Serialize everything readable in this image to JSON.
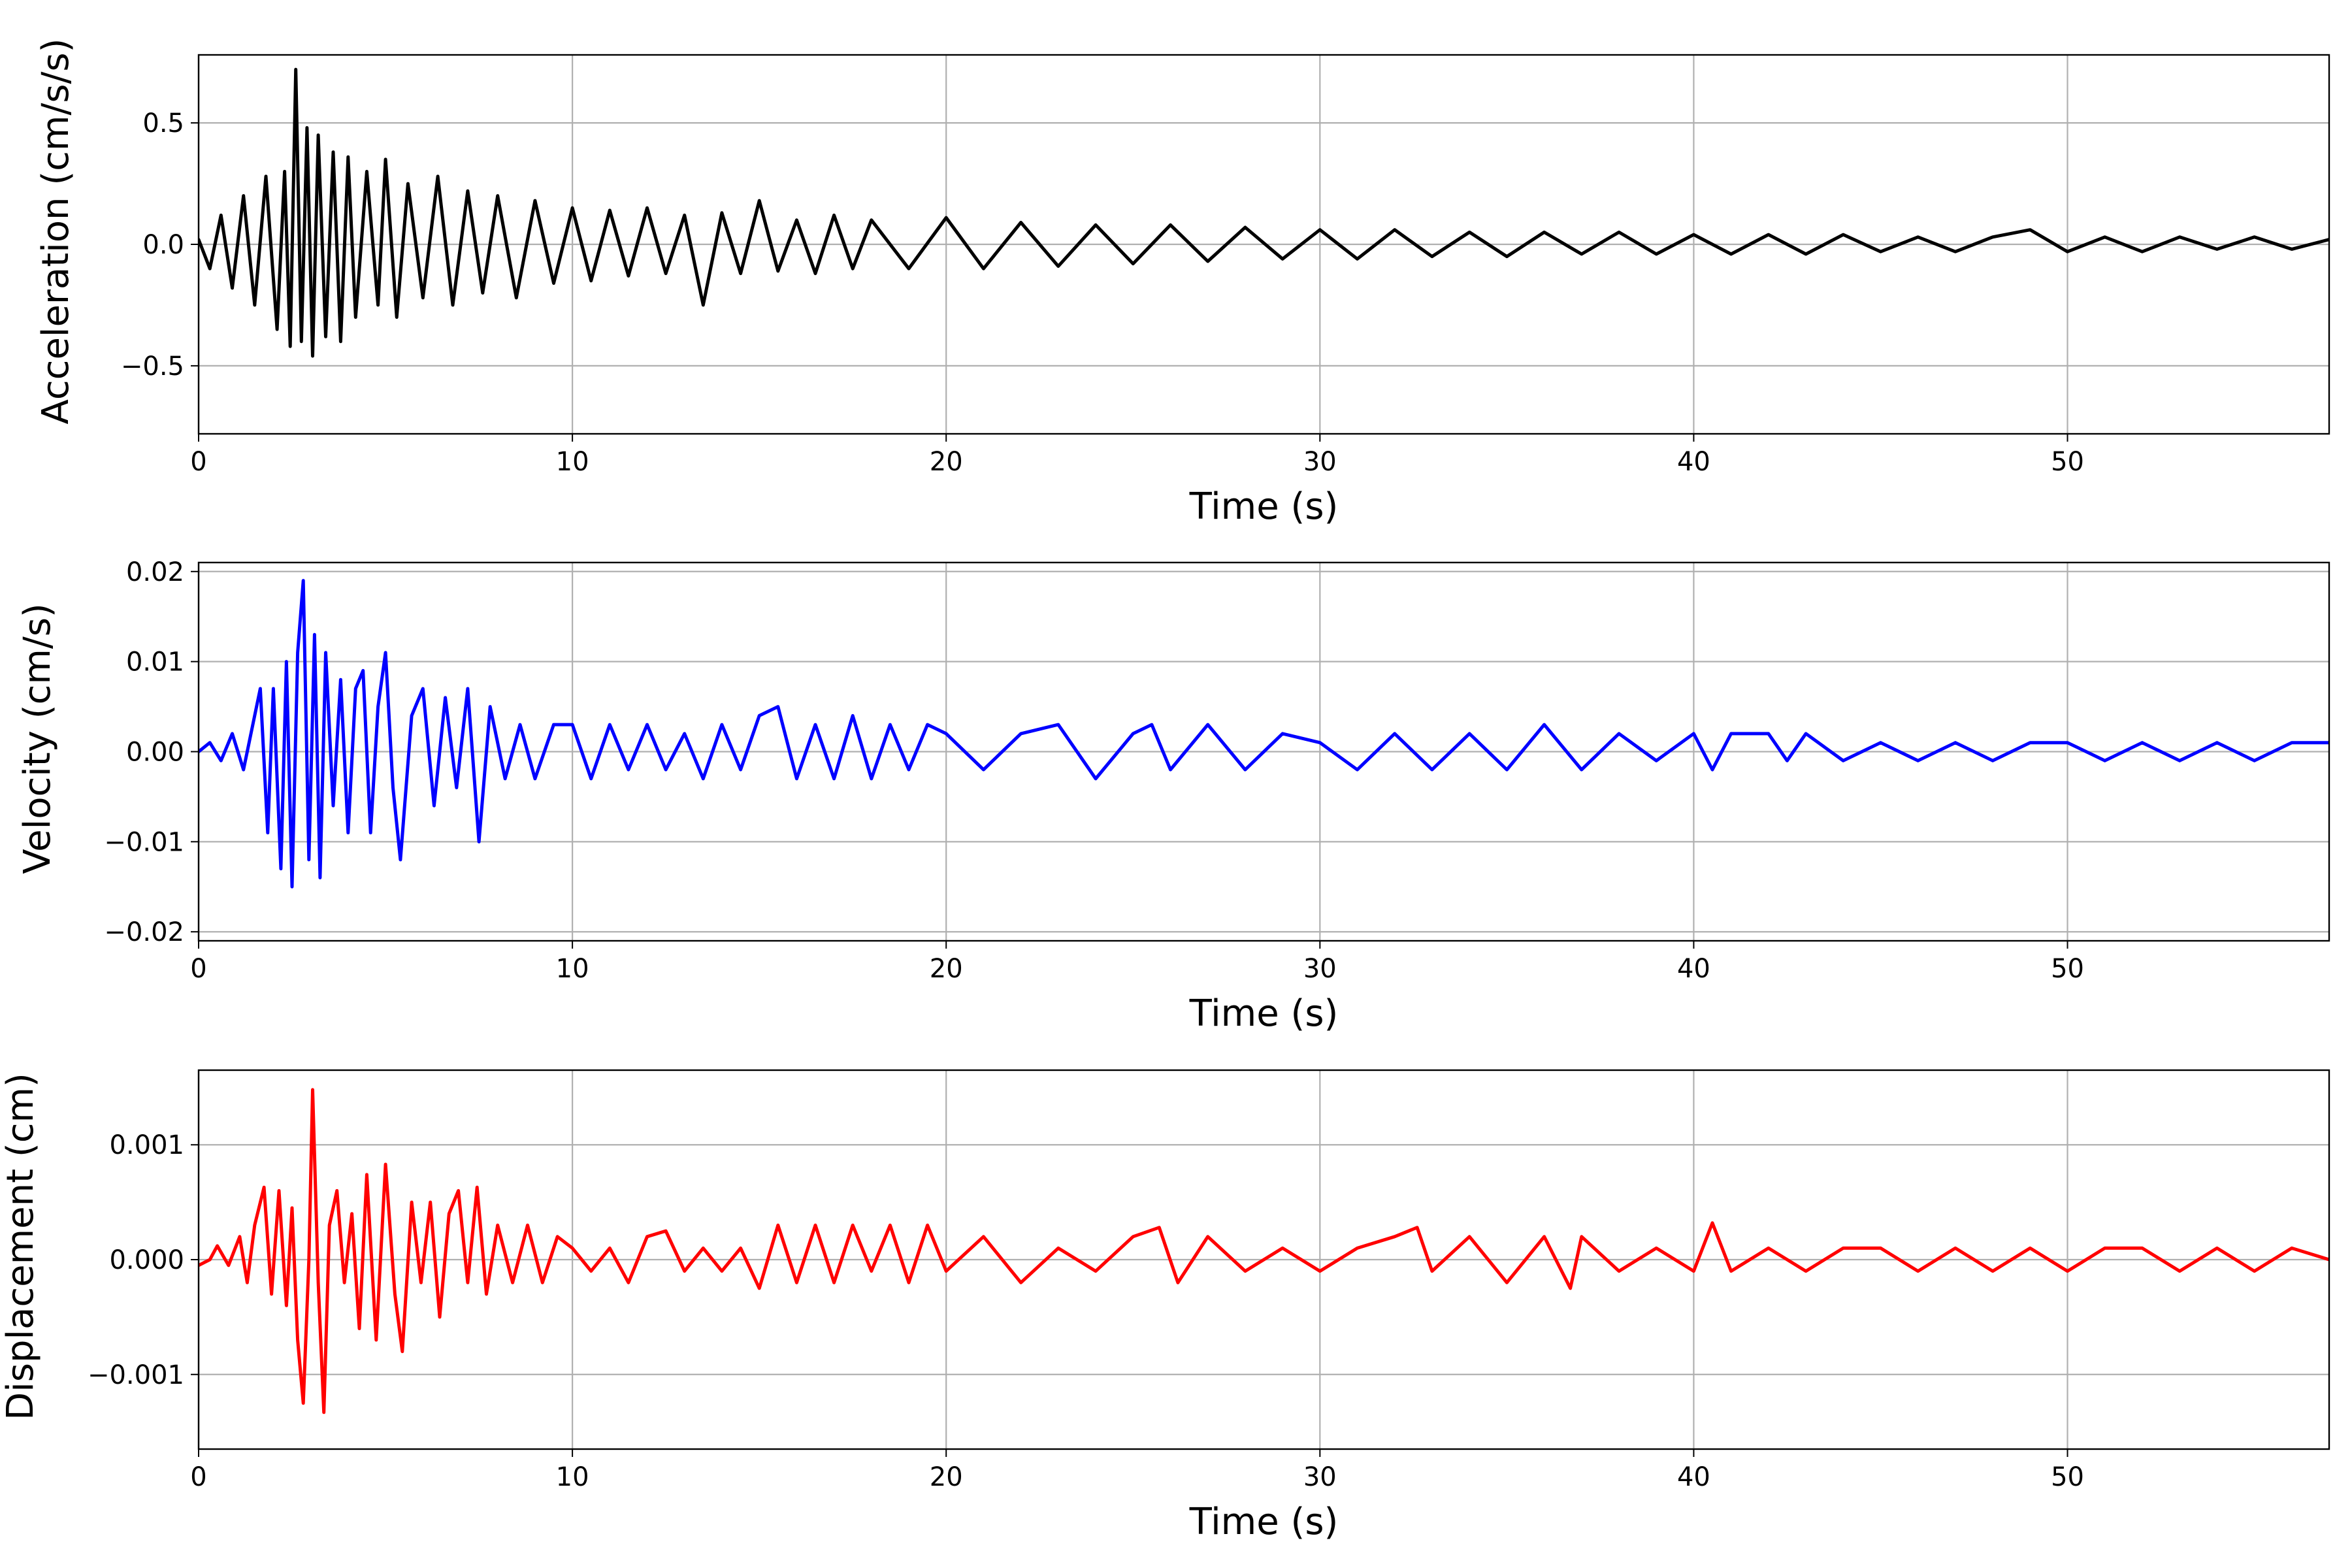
{
  "chart_data": [
    {
      "type": "line",
      "title": "",
      "xlabel": "Time (s)",
      "ylabel": "Acceleration (cm/s/s)",
      "xlim": [
        0,
        57
      ],
      "ylim": [
        -0.78,
        0.78
      ],
      "xticks": [
        0,
        10,
        20,
        30,
        40,
        50
      ],
      "xtick_labels": [
        "0",
        "10",
        "20",
        "30",
        "40",
        "50"
      ],
      "yticks": [
        -0.5,
        0.0,
        0.5
      ],
      "ytick_labels": [
        "−0.5",
        "0.0",
        "0.5"
      ],
      "grid": true,
      "legend": "none",
      "color": "#000000",
      "series": [
        {
          "x": [
            0,
            0.3,
            0.6,
            0.9,
            1.2,
            1.5,
            1.8,
            2.1,
            2.3,
            2.45,
            2.6,
            2.75,
            2.9,
            3.05,
            3.2,
            3.4,
            3.6,
            3.8,
            4.0,
            4.2,
            4.5,
            4.8,
            5.0,
            5.3,
            5.6,
            6.0,
            6.4,
            6.8,
            7.2,
            7.6,
            8.0,
            8.5,
            9.0,
            9.5,
            10.0,
            10.5,
            11.0,
            11.5,
            12.0,
            12.5,
            13.0,
            13.5,
            14.0,
            14.5,
            15.0,
            15.5,
            16.0,
            16.5,
            17.0,
            17.5,
            18.0,
            19.0,
            20.0,
            21.0,
            22.0,
            23.0,
            24.0,
            25.0,
            26.0,
            27.0,
            28.0,
            29.0,
            30.0,
            31.0,
            32.0,
            33.0,
            34.0,
            35.0,
            36.0,
            37.0,
            38.0,
            39.0,
            40.0,
            41.0,
            42.0,
            43.0,
            44.0,
            45.0,
            46.0,
            47.0,
            48.0,
            49.0,
            50.0,
            51.0,
            52.0,
            53.0,
            54.0,
            55.0,
            56.0,
            57.0
          ],
          "y": [
            0.02,
            -0.1,
            0.12,
            -0.18,
            0.2,
            -0.25,
            0.28,
            -0.35,
            0.3,
            -0.42,
            0.72,
            -0.4,
            0.48,
            -0.46,
            0.45,
            -0.38,
            0.38,
            -0.4,
            0.36,
            -0.3,
            0.3,
            -0.25,
            0.35,
            -0.3,
            0.25,
            -0.22,
            0.28,
            -0.25,
            0.22,
            -0.2,
            0.2,
            -0.22,
            0.18,
            -0.16,
            0.15,
            -0.15,
            0.14,
            -0.13,
            0.15,
            -0.12,
            0.12,
            -0.25,
            0.13,
            -0.12,
            0.18,
            -0.11,
            0.1,
            -0.12,
            0.12,
            -0.1,
            0.1,
            -0.1,
            0.11,
            -0.1,
            0.09,
            -0.09,
            0.08,
            -0.08,
            0.08,
            -0.07,
            0.07,
            -0.06,
            0.06,
            -0.06,
            0.06,
            -0.05,
            0.05,
            -0.05,
            0.05,
            -0.04,
            0.05,
            -0.04,
            0.04,
            -0.04,
            0.04,
            -0.04,
            0.04,
            -0.03,
            0.03,
            -0.03,
            0.03,
            0.06,
            -0.03,
            0.03,
            -0.03,
            0.03,
            -0.02,
            0.03,
            -0.02,
            0.02
          ]
        }
      ]
    },
    {
      "type": "line",
      "title": "",
      "xlabel": "Time (s)",
      "ylabel": "Velocity (cm/s)",
      "xlim": [
        0,
        57
      ],
      "ylim": [
        -0.021,
        0.021
      ],
      "xticks": [
        0,
        10,
        20,
        30,
        40,
        50
      ],
      "xtick_labels": [
        "0",
        "10",
        "20",
        "30",
        "40",
        "50"
      ],
      "yticks": [
        -0.02,
        -0.01,
        0.0,
        0.01,
        0.02
      ],
      "ytick_labels": [
        "−0.02",
        "−0.01",
        "0.00",
        "0.01",
        "0.02"
      ],
      "grid": true,
      "legend": "none",
      "color": "#0000ff",
      "series": [
        {
          "x": [
            0,
            0.3,
            0.6,
            0.9,
            1.2,
            1.5,
            1.65,
            1.85,
            2.0,
            2.2,
            2.35,
            2.5,
            2.65,
            2.8,
            2.95,
            3.1,
            3.25,
            3.4,
            3.6,
            3.8,
            4.0,
            4.2,
            4.4,
            4.6,
            4.8,
            5.0,
            5.2,
            5.4,
            5.7,
            6.0,
            6.3,
            6.6,
            6.9,
            7.2,
            7.5,
            7.8,
            8.2,
            8.6,
            9.0,
            9.5,
            10.0,
            10.5,
            11.0,
            11.5,
            12.0,
            12.5,
            13.0,
            13.5,
            14.0,
            14.5,
            15.0,
            15.5,
            16.0,
            16.5,
            17.0,
            17.5,
            18.0,
            18.5,
            19.0,
            19.5,
            20.0,
            21.0,
            22.0,
            23.0,
            24.0,
            25.0,
            25.5,
            26.0,
            27.0,
            28.0,
            29.0,
            30.0,
            31.0,
            32.0,
            33.0,
            34.0,
            35.0,
            36.0,
            37.0,
            38.0,
            39.0,
            40.0,
            40.5,
            41.0,
            42.0,
            42.5,
            43.0,
            44.0,
            45.0,
            46.0,
            47.0,
            48.0,
            49.0,
            50.0,
            51.0,
            52.0,
            53.0,
            54.0,
            55.0,
            56.0,
            57.0
          ],
          "y": [
            0.0,
            0.001,
            -0.001,
            0.002,
            -0.002,
            0.004,
            0.007,
            -0.009,
            0.007,
            -0.013,
            0.01,
            -0.015,
            0.011,
            0.019,
            -0.012,
            0.013,
            -0.014,
            0.011,
            -0.006,
            0.008,
            -0.009,
            0.007,
            0.009,
            -0.009,
            0.005,
            0.011,
            -0.004,
            -0.012,
            0.004,
            0.007,
            -0.006,
            0.006,
            -0.004,
            0.007,
            -0.01,
            0.005,
            -0.003,
            0.003,
            -0.003,
            0.003,
            0.003,
            -0.003,
            0.003,
            -0.002,
            0.003,
            -0.002,
            0.002,
            -0.003,
            0.003,
            -0.002,
            0.004,
            0.005,
            -0.003,
            0.003,
            -0.003,
            0.004,
            -0.003,
            0.003,
            -0.002,
            0.003,
            0.002,
            -0.002,
            0.002,
            0.003,
            -0.003,
            0.002,
            0.003,
            -0.002,
            0.003,
            -0.002,
            0.002,
            0.001,
            -0.002,
            0.002,
            -0.002,
            0.002,
            -0.002,
            0.003,
            -0.002,
            0.002,
            -0.001,
            0.002,
            -0.002,
            0.002,
            0.002,
            -0.001,
            0.002,
            -0.001,
            0.001,
            -0.001,
            0.001,
            -0.001,
            0.001,
            0.001,
            -0.001,
            0.001,
            -0.001,
            0.001,
            -0.001,
            0.001,
            0.001
          ]
        }
      ]
    },
    {
      "type": "line",
      "title": "",
      "xlabel": "Time (s)",
      "ylabel": "Displacement (cm)",
      "xlim": [
        0,
        57
      ],
      "ylim": [
        -0.00165,
        0.00165
      ],
      "xticks": [
        0,
        10,
        20,
        30,
        40,
        50
      ],
      "xtick_labels": [
        "0",
        "10",
        "20",
        "30",
        "40",
        "50"
      ],
      "yticks": [
        -0.001,
        0.0,
        0.001
      ],
      "ytick_labels": [
        "−0.001",
        "0.000",
        "0.001"
      ],
      "grid": true,
      "legend": "none",
      "color": "#ff0000",
      "series": [
        {
          "x": [
            0,
            0.3,
            0.5,
            0.8,
            1.1,
            1.3,
            1.5,
            1.75,
            1.95,
            2.15,
            2.35,
            2.5,
            2.65,
            2.8,
            2.95,
            3.05,
            3.2,
            3.35,
            3.5,
            3.7,
            3.9,
            4.1,
            4.3,
            4.5,
            4.75,
            5.0,
            5.25,
            5.45,
            5.7,
            5.95,
            6.2,
            6.45,
            6.7,
            6.95,
            7.2,
            7.45,
            7.7,
            8.0,
            8.4,
            8.8,
            9.2,
            9.6,
            10.0,
            10.5,
            11.0,
            11.5,
            12.0,
            12.5,
            13.0,
            13.5,
            14.0,
            14.5,
            15.0,
            15.5,
            16.0,
            16.5,
            17.0,
            17.5,
            18.0,
            18.5,
            19.0,
            19.5,
            20.0,
            21.0,
            22.0,
            23.0,
            24.0,
            25.0,
            25.7,
            26.2,
            27.0,
            28.0,
            29.0,
            30.0,
            31.0,
            32.0,
            32.6,
            33.0,
            34.0,
            35.0,
            36.0,
            36.7,
            37.0,
            38.0,
            39.0,
            40.0,
            40.5,
            41.0,
            42.0,
            43.0,
            44.0,
            45.0,
            46.0,
            47.0,
            48.0,
            49.0,
            50.0,
            51.0,
            52.0,
            53.0,
            54.0,
            55.0,
            56.0,
            57.0
          ],
          "y": [
            -5e-05,
            0.0,
            0.00012,
            -5e-05,
            0.0002,
            -0.0002,
            0.0003,
            0.00063,
            -0.0003,
            0.0006,
            -0.0004,
            0.00045,
            -0.0007,
            -0.00125,
            0.0,
            0.00148,
            -0.0002,
            -0.00133,
            0.0003,
            0.0006,
            -0.0002,
            0.0004,
            -0.0006,
            0.00074,
            -0.0007,
            0.00083,
            -0.0003,
            -0.0008,
            0.0005,
            -0.0002,
            0.0005,
            -0.0005,
            0.0004,
            0.0006,
            -0.0002,
            0.00063,
            -0.0003,
            0.0003,
            -0.0002,
            0.0003,
            -0.0002,
            0.0002,
            0.0001,
            -0.0001,
            0.0001,
            -0.0002,
            0.0002,
            0.00025,
            -0.0001,
            0.0001,
            -0.0001,
            0.0001,
            -0.00025,
            0.0003,
            -0.0002,
            0.0003,
            -0.0002,
            0.0003,
            -0.0001,
            0.0003,
            -0.0002,
            0.0003,
            -0.0001,
            0.0002,
            -0.0002,
            0.0001,
            -0.0001,
            0.0002,
            0.00028,
            -0.0002,
            0.0002,
            -0.0001,
            0.0001,
            -0.0001,
            0.0001,
            0.0002,
            0.00028,
            -0.0001,
            0.0002,
            -0.0002,
            0.0002,
            -0.00025,
            0.0002,
            -0.0001,
            0.0001,
            -0.0001,
            0.00032,
            -0.0001,
            0.0001,
            -0.0001,
            0.0001,
            0.0001,
            -0.0001,
            0.0001,
            -0.0001,
            0.0001,
            -0.0001,
            0.0001,
            0.0001,
            -0.0001,
            0.0001,
            -0.0001,
            0.0001,
            0.0
          ]
        }
      ]
    }
  ]
}
